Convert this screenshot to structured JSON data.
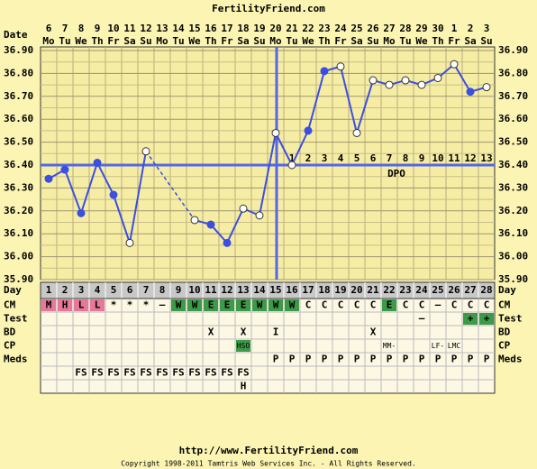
{
  "header": {
    "title": "FertilityFriend.com"
  },
  "chart_data": {
    "type": "line",
    "dates_label": "Date",
    "dates": [
      6,
      7,
      8,
      9,
      10,
      11,
      12,
      13,
      14,
      15,
      16,
      17,
      18,
      19,
      20,
      21,
      22,
      23,
      24,
      25,
      26,
      27,
      28,
      29,
      30,
      1,
      2,
      3
    ],
    "weekdays": [
      "Mo",
      "Tu",
      "We",
      "Th",
      "Fr",
      "Sa",
      "Su",
      "Mo",
      "Tu",
      "We",
      "Th",
      "Fr",
      "Sa",
      "Su",
      "Mo",
      "Tu",
      "We",
      "Th",
      "Fr",
      "Sa",
      "Su",
      "Mo",
      "Tu",
      "We",
      "Th",
      "Fr",
      "Sa",
      "Su"
    ],
    "series": [
      {
        "color": "#3b4fe0",
        "values": [
          36.34,
          36.38,
          36.19,
          36.41,
          36.27,
          36.06,
          36.46,
          null,
          null,
          36.16,
          36.14,
          36.06,
          36.21,
          36.18,
          36.54,
          36.4,
          36.55,
          36.81,
          36.83,
          36.54,
          36.77,
          36.75,
          36.77,
          36.75,
          36.78,
          36.84,
          36.72,
          36.74
        ],
        "filled": [
          true,
          true,
          true,
          true,
          true,
          false,
          false,
          false,
          false,
          false,
          true,
          true,
          false,
          false,
          false,
          false,
          true,
          true,
          false,
          false,
          false,
          false,
          false,
          false,
          false,
          false,
          true,
          false
        ]
      }
    ],
    "ylim": [
      35.9,
      36.9
    ],
    "yticks": [
      {
        "value": 36.9,
        "label": "36.90"
      },
      {
        "value": 36.8,
        "label": "36.80"
      },
      {
        "value": 36.7,
        "label": "36.70"
      },
      {
        "value": 36.6,
        "label": "36.60"
      },
      {
        "value": 36.5,
        "label": "36.50"
      },
      {
        "value": 36.4,
        "label": "36.40"
      },
      {
        "value": 36.3,
        "label": "36.30"
      },
      {
        "value": 36.2,
        "label": "36.20"
      },
      {
        "value": 36.1,
        "label": "36.10"
      },
      {
        "value": 36.0,
        "label": "36.00"
      },
      {
        "value": 35.9,
        "label": "35.90"
      }
    ],
    "grid": true,
    "coverline": 36.4,
    "ovulation_day": 15,
    "dpo_label": "DPO",
    "dpo": [
      null,
      null,
      null,
      null,
      null,
      null,
      null,
      null,
      null,
      null,
      null,
      null,
      null,
      null,
      null,
      1,
      2,
      3,
      4,
      5,
      6,
      7,
      8,
      9,
      10,
      11,
      12,
      13
    ]
  },
  "table": {
    "day_label": "Day",
    "days": [
      1,
      2,
      3,
      4,
      5,
      6,
      7,
      8,
      9,
      10,
      11,
      12,
      13,
      14,
      15,
      16,
      17,
      18,
      19,
      20,
      21,
      22,
      23,
      24,
      25,
      26,
      27,
      28
    ],
    "rows": [
      {
        "label": "CM",
        "cells": [
          "M",
          "H",
          "L",
          "L",
          "*",
          "*",
          "*",
          "–",
          "W",
          "W",
          "E",
          "E",
          "E",
          "W",
          "W",
          "W",
          "C",
          "C",
          "C",
          "C",
          "C",
          "E",
          "C",
          "C",
          "–",
          "C",
          "C",
          "C"
        ],
        "colors": {
          "M": "#e8789a",
          "H": "#e8789a",
          "L": "#e8789a",
          "W": "#3c9a48",
          "E": "#3c9a48"
        }
      },
      {
        "label": "Test",
        "cells": [
          null,
          null,
          null,
          null,
          null,
          null,
          null,
          null,
          null,
          null,
          null,
          null,
          null,
          null,
          null,
          null,
          null,
          null,
          null,
          null,
          null,
          null,
          null,
          "–",
          null,
          null,
          "+",
          "+"
        ],
        "colors": {
          "+": "#3c9a48"
        }
      },
      {
        "label": "BD",
        "cells": [
          null,
          null,
          null,
          null,
          null,
          null,
          null,
          null,
          null,
          null,
          "X",
          null,
          "X",
          null,
          "I",
          null,
          null,
          null,
          null,
          null,
          "X",
          null,
          null,
          null,
          null,
          null,
          null,
          null
        ],
        "colors": {}
      },
      {
        "label": "CP",
        "cells": [
          null,
          null,
          null,
          null,
          null,
          null,
          null,
          null,
          null,
          null,
          null,
          null,
          "HSO",
          null,
          null,
          null,
          null,
          null,
          null,
          null,
          null,
          "MM-",
          null,
          null,
          "LF-",
          "LMC",
          null,
          null
        ],
        "colors": {
          "HSO": "#3c9a48"
        }
      },
      {
        "label": "Meds",
        "cells": [
          null,
          null,
          null,
          null,
          null,
          null,
          null,
          null,
          null,
          null,
          null,
          null,
          null,
          null,
          "P",
          "P",
          "P",
          "P",
          "P",
          "P",
          "P",
          "P",
          "P",
          "P",
          "P",
          "P",
          "P",
          "P"
        ],
        "colors": {}
      },
      {
        "label": null,
        "cells": [
          null,
          null,
          "FS",
          "FS",
          "FS",
          "FS",
          "FS",
          "FS",
          "FS",
          "FS",
          "FS",
          "FS",
          "FS",
          null,
          null,
          null,
          null,
          null,
          null,
          null,
          null,
          null,
          null,
          null,
          null,
          null,
          null,
          null
        ],
        "colors": {}
      },
      {
        "label": null,
        "cells": [
          null,
          null,
          null,
          null,
          null,
          null,
          null,
          null,
          null,
          null,
          null,
          null,
          "H",
          null,
          null,
          null,
          null,
          null,
          null,
          null,
          null,
          null,
          null,
          null,
          null,
          null,
          null,
          null
        ],
        "colors": {}
      }
    ]
  },
  "footer": {
    "url": "http://www.FertilityFriend.com",
    "copyright": "Copyright 1998-2011 Tamtris Web Services Inc. - All Rights Reserved."
  }
}
